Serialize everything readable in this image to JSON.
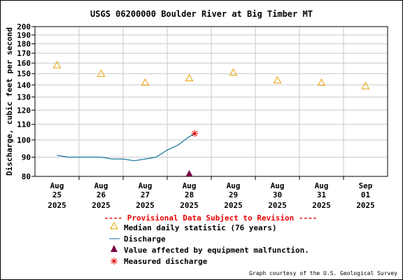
{
  "chart_data": {
    "type": "line",
    "title": "USGS 06200000 Boulder River at Big Timber MT",
    "ylabel": "Discharge, cubic feet per second",
    "xlabel": "",
    "y_scale": "log",
    "ylim": [
      80,
      200
    ],
    "y_ticks": [
      80,
      90,
      100,
      110,
      120,
      130,
      140,
      150,
      160,
      170,
      180,
      190,
      200
    ],
    "x_ticks": [
      {
        "month": "Aug",
        "day": "25",
        "year": "2025"
      },
      {
        "month": "Aug",
        "day": "26",
        "year": "2025"
      },
      {
        "month": "Aug",
        "day": "27",
        "year": "2025"
      },
      {
        "month": "Aug",
        "day": "28",
        "year": "2025"
      },
      {
        "month": "Aug",
        "day": "29",
        "year": "2025"
      },
      {
        "month": "Aug",
        "day": "30",
        "year": "2025"
      },
      {
        "month": "Aug",
        "day": "31",
        "year": "2025"
      },
      {
        "month": "Sep",
        "day": "01",
        "year": "2025"
      }
    ],
    "grid": true,
    "median_daily": {
      "x": [
        "2025-08-25",
        "2025-08-26",
        "2025-08-27",
        "2025-08-28",
        "2025-08-29",
        "2025-08-30",
        "2025-08-31",
        "2025-09-01"
      ],
      "values": [
        158,
        150,
        142,
        146,
        151,
        144,
        142,
        139
      ]
    },
    "discharge": {
      "x": [
        "2025-08-25 00:00",
        "2025-08-25 06:00",
        "2025-08-25 12:00",
        "2025-08-25 18:00",
        "2025-08-26 00:00",
        "2025-08-26 06:00",
        "2025-08-26 12:00",
        "2025-08-26 18:00",
        "2025-08-27 00:00",
        "2025-08-27 06:00",
        "2025-08-27 12:00",
        "2025-08-27 18:00",
        "2025-08-28 00:00",
        "2025-08-28 03:00"
      ],
      "values": [
        91,
        90,
        90,
        90,
        90,
        89,
        89,
        88,
        89,
        90,
        94,
        97,
        102,
        104
      ]
    },
    "equipment_malfunction": {
      "x": [
        "2025-08-28 00:00"
      ],
      "values": [
        80
      ]
    },
    "measured_discharge": {
      "x": [
        "2025-08-28 03:00"
      ],
      "values": [
        104
      ]
    },
    "colors": {
      "median": "#e6a000",
      "discharge": "#1874a0",
      "malfunction": "#7a0044",
      "measured": "#e60000",
      "provisional": "#e60000",
      "grid": "#c8c8c8"
    }
  },
  "legend": {
    "provisional": "---- Provisional Data Subject to Revision ----",
    "items": [
      {
        "label": "Median daily statistic (76 years)",
        "icon": "triangle-open-icon"
      },
      {
        "label": "Discharge",
        "icon": "line-icon"
      },
      {
        "label": "Value affected by equipment malfunction.",
        "icon": "triangle-filled-icon"
      },
      {
        "label": "Measured discharge",
        "icon": "asterisk-icon"
      }
    ]
  },
  "credit": "Graph courtesy of the U.S. Geological Survey"
}
